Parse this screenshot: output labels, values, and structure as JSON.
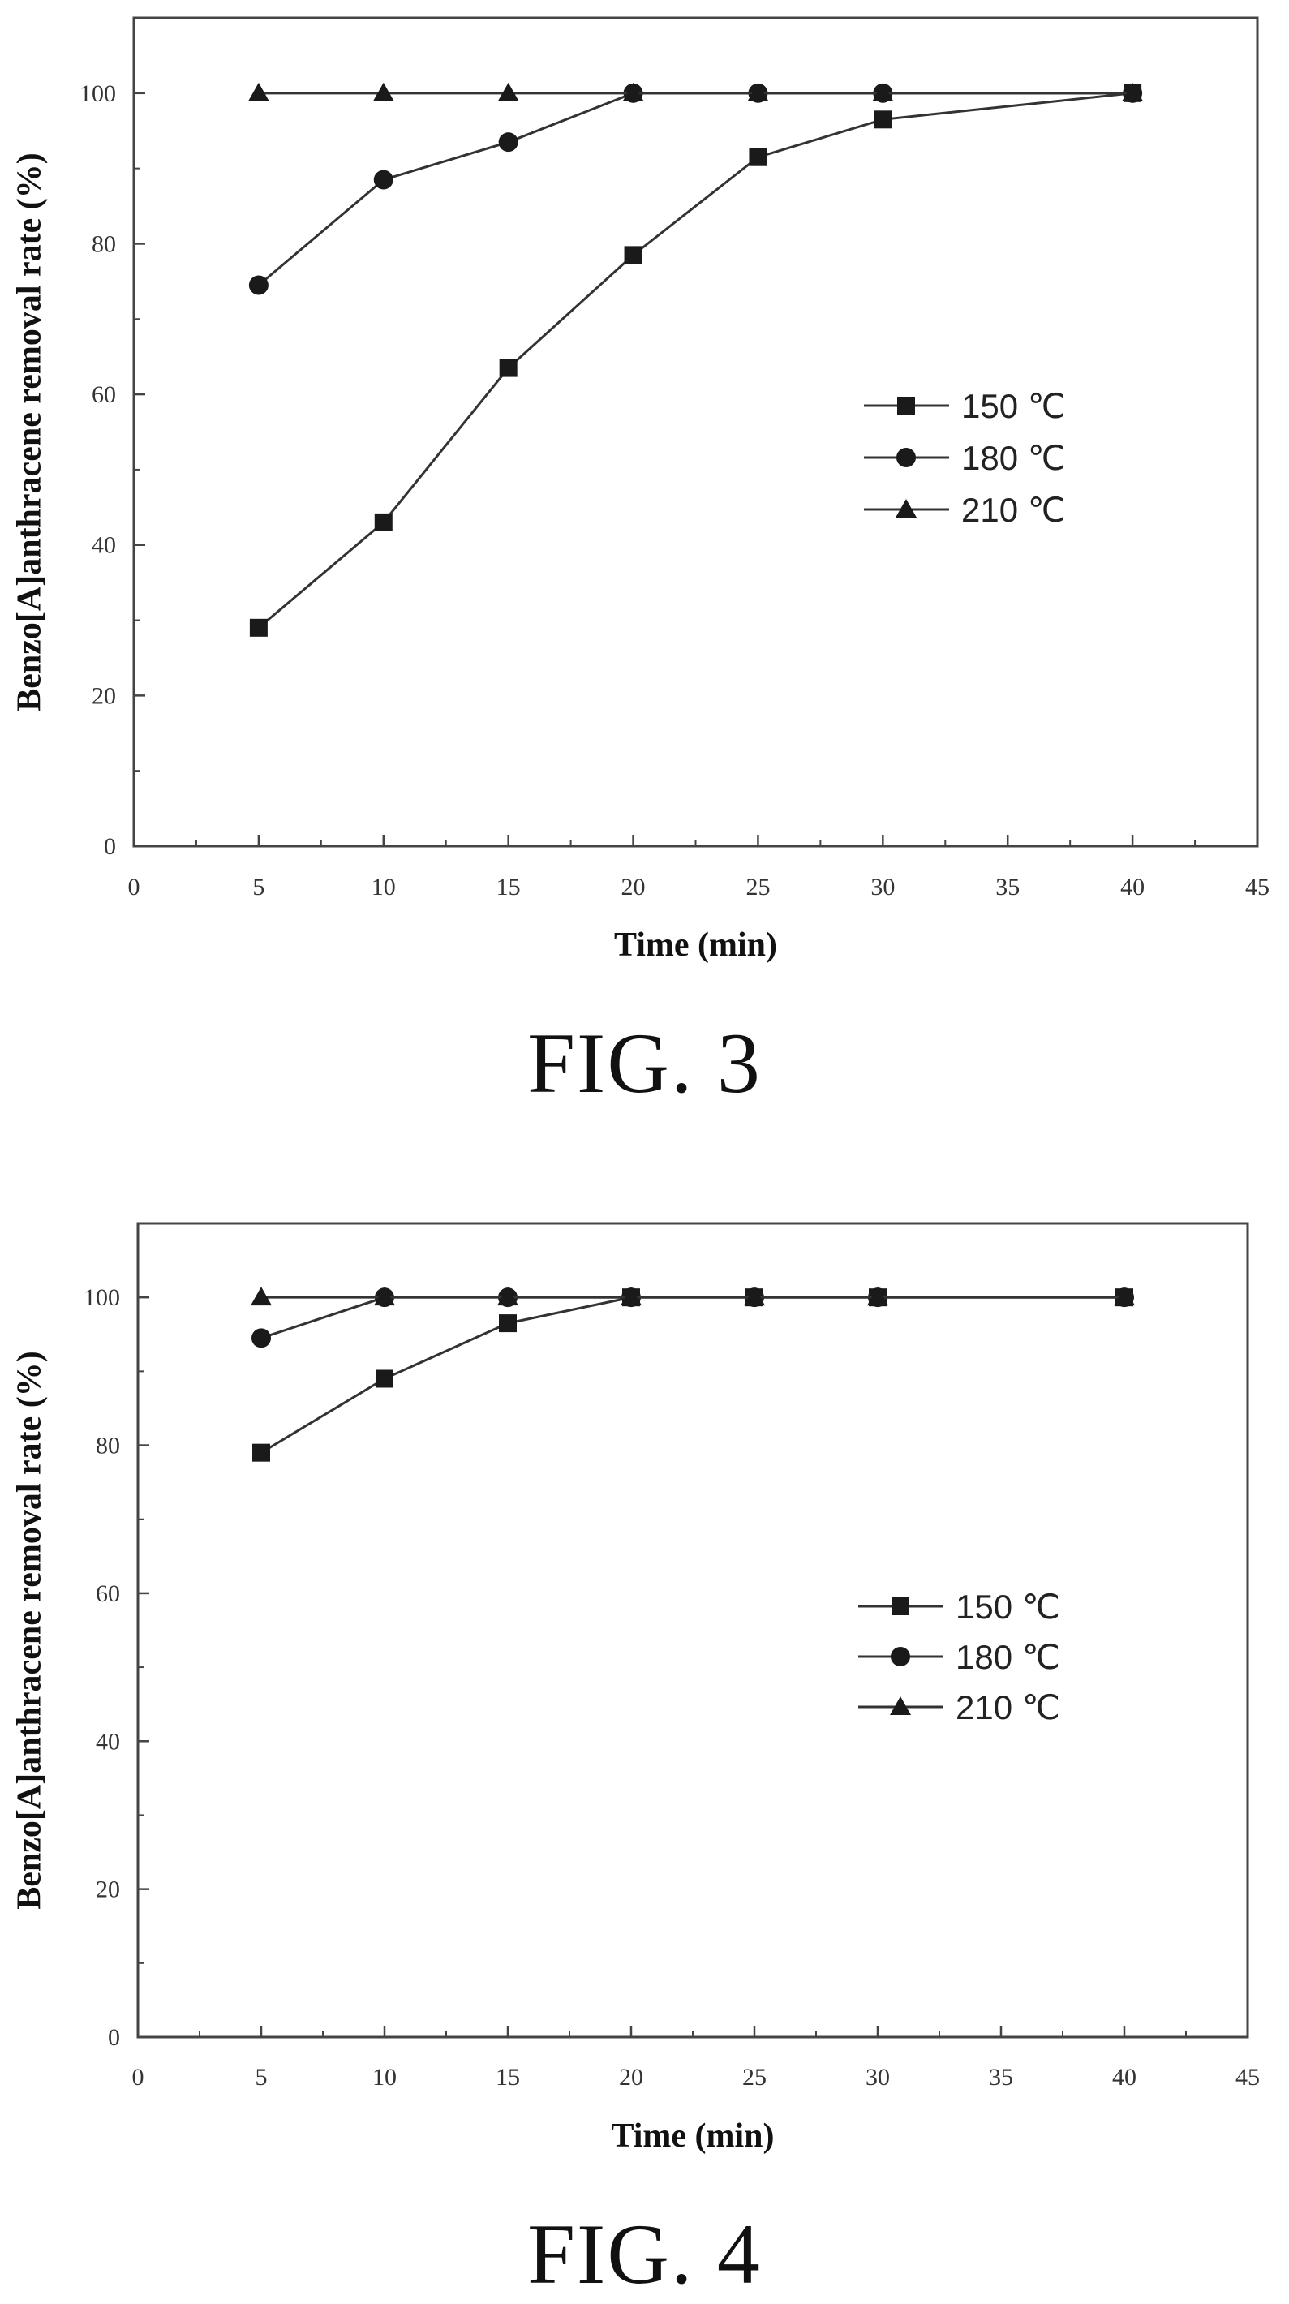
{
  "chart_data": [
    {
      "type": "line",
      "caption": "FIG. 3",
      "xlabel": "Time (min)",
      "ylabel": "Benzo[A]anthracene removal rate (%)",
      "xlim": [
        0,
        45
      ],
      "ylim": [
        0,
        110
      ],
      "xticks": [
        0,
        5,
        10,
        15,
        20,
        25,
        30,
        35,
        40,
        45
      ],
      "yticks": [
        0,
        20,
        40,
        60,
        80,
        100
      ],
      "grid": false,
      "legend_position": "center-right",
      "series": [
        {
          "name": "150 ℃",
          "marker": "square",
          "x": [
            5,
            10,
            15,
            20,
            25,
            30,
            40
          ],
          "y": [
            29,
            43,
            63.5,
            78.5,
            91.5,
            96.5,
            100
          ]
        },
        {
          "name": "180 ℃",
          "marker": "circle",
          "x": [
            5,
            10,
            15,
            20,
            25,
            30,
            40
          ],
          "y": [
            74.5,
            88.5,
            93.5,
            100,
            100,
            100,
            100
          ]
        },
        {
          "name": "210 ℃",
          "marker": "triangle",
          "x": [
            5,
            10,
            15,
            20,
            25,
            30,
            40
          ],
          "y": [
            100,
            100,
            100,
            100,
            100,
            100,
            100
          ]
        }
      ]
    },
    {
      "type": "line",
      "caption": "FIG. 4",
      "xlabel": "Time (min)",
      "ylabel": "Benzo[A]anthracene removal rate (%)",
      "xlim": [
        0,
        45
      ],
      "ylim": [
        0,
        110
      ],
      "xticks": [
        0,
        5,
        10,
        15,
        20,
        25,
        30,
        35,
        40,
        45
      ],
      "yticks": [
        0,
        20,
        40,
        60,
        80,
        100
      ],
      "grid": false,
      "legend_position": "center-right",
      "series": [
        {
          "name": "150 ℃",
          "marker": "square",
          "x": [
            5,
            10,
            15,
            20,
            25,
            30,
            40
          ],
          "y": [
            79,
            89,
            96.5,
            100,
            100,
            100,
            100
          ]
        },
        {
          "name": "180 ℃",
          "marker": "circle",
          "x": [
            5,
            10,
            15,
            20,
            25,
            30,
            40
          ],
          "y": [
            94.5,
            100,
            100,
            100,
            100,
            100,
            100
          ]
        },
        {
          "name": "210 ℃",
          "marker": "triangle",
          "x": [
            5,
            10,
            15,
            20,
            25,
            30,
            40
          ],
          "y": [
            100,
            100,
            100,
            100,
            100,
            100,
            100
          ]
        }
      ]
    }
  ],
  "colors": {
    "line": "#333333",
    "marker": "#1a1a1a",
    "axis": "#444444"
  }
}
